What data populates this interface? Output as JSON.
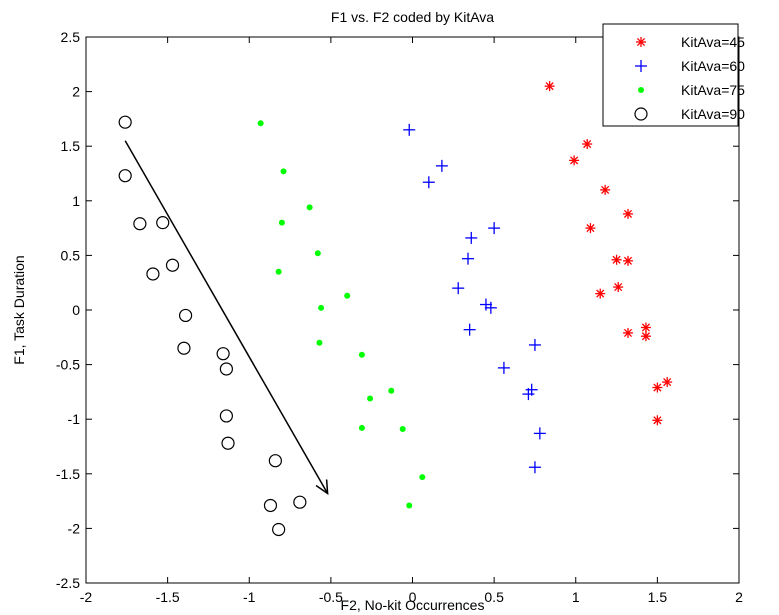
{
  "chart_data": {
    "type": "scatter",
    "title": "F1 vs. F2 coded by KitAva",
    "xlabel": "F2, No-kit Occurrences",
    "ylabel": "F1, Task Duration",
    "xlim": [
      -2,
      2
    ],
    "ylim": [
      -2.5,
      2.5
    ],
    "xticks": [
      -2,
      -1.5,
      -1,
      -0.5,
      0,
      0.5,
      1,
      1.5,
      2
    ],
    "yticks": [
      -2.5,
      -2,
      -1.5,
      -1,
      -0.5,
      0,
      0.5,
      1,
      1.5,
      2,
      2.5
    ],
    "xtick_labels": [
      "-2",
      "-1.5",
      "-1",
      "-0.5",
      "0",
      "0.5",
      "1",
      "1.5",
      "2"
    ],
    "ytick_labels": [
      "-2.5",
      "-2",
      "-1.5",
      "-1",
      "-0.5",
      "0",
      "0.5",
      "1",
      "1.5",
      "2",
      "2.5"
    ],
    "grid": false,
    "legend_position": "top-right",
    "annotation_arrow": {
      "from": [
        -1.76,
        1.55
      ],
      "to": [
        -0.52,
        -1.68
      ]
    },
    "series": [
      {
        "name": "KitAva=45",
        "marker": "asterisk",
        "color": "#ff0000",
        "points": [
          [
            0.84,
            2.05
          ],
          [
            1.07,
            1.52
          ],
          [
            0.99,
            1.37
          ],
          [
            1.18,
            1.1
          ],
          [
            1.32,
            0.88
          ],
          [
            1.09,
            0.75
          ],
          [
            1.25,
            0.46
          ],
          [
            1.32,
            0.45
          ],
          [
            1.26,
            0.21
          ],
          [
            1.15,
            0.15
          ],
          [
            1.32,
            -0.21
          ],
          [
            1.43,
            -0.16
          ],
          [
            1.43,
            -0.24
          ],
          [
            1.56,
            -0.66
          ],
          [
            1.5,
            -0.71
          ],
          [
            1.5,
            -1.01
          ]
        ]
      },
      {
        "name": "KitAva=60",
        "marker": "plus",
        "color": "#0000ff",
        "points": [
          [
            -0.02,
            1.65
          ],
          [
            0.18,
            1.32
          ],
          [
            0.1,
            1.17
          ],
          [
            0.36,
            0.66
          ],
          [
            0.5,
            0.75
          ],
          [
            0.34,
            0.47
          ],
          [
            0.28,
            0.2
          ],
          [
            0.45,
            0.05
          ],
          [
            0.48,
            0.02
          ],
          [
            0.35,
            -0.18
          ],
          [
            0.75,
            -0.32
          ],
          [
            0.56,
            -0.53
          ],
          [
            0.73,
            -0.73
          ],
          [
            0.71,
            -0.77
          ],
          [
            0.78,
            -1.13
          ],
          [
            0.75,
            -1.44
          ]
        ]
      },
      {
        "name": "KitAva=75",
        "marker": "dot",
        "color": "#00ff00",
        "points": [
          [
            -0.93,
            1.71
          ],
          [
            -0.79,
            1.27
          ],
          [
            -0.63,
            0.94
          ],
          [
            -0.8,
            0.8
          ],
          [
            -0.58,
            0.52
          ],
          [
            -0.82,
            0.35
          ],
          [
            -0.56,
            0.02
          ],
          [
            -0.4,
            0.13
          ],
          [
            -0.57,
            -0.3
          ],
          [
            -0.31,
            -0.41
          ],
          [
            -0.13,
            -0.74
          ],
          [
            -0.26,
            -0.81
          ],
          [
            -0.31,
            -1.08
          ],
          [
            -0.06,
            -1.09
          ],
          [
            0.06,
            -1.53
          ],
          [
            -0.02,
            -1.79
          ]
        ]
      },
      {
        "name": "KitAva=90",
        "marker": "circle",
        "color": "#000000",
        "points": [
          [
            -1.76,
            1.72
          ],
          [
            -1.76,
            1.23
          ],
          [
            -1.67,
            0.79
          ],
          [
            -1.53,
            0.8
          ],
          [
            -1.47,
            0.41
          ],
          [
            -1.59,
            0.33
          ],
          [
            -1.39,
            -0.05
          ],
          [
            -1.4,
            -0.35
          ],
          [
            -1.16,
            -0.4
          ],
          [
            -1.14,
            -0.54
          ],
          [
            -1.14,
            -0.97
          ],
          [
            -1.13,
            -1.22
          ],
          [
            -0.84,
            -1.38
          ],
          [
            -0.69,
            -1.76
          ],
          [
            -0.87,
            -1.79
          ],
          [
            -0.82,
            -2.01
          ]
        ]
      }
    ]
  }
}
